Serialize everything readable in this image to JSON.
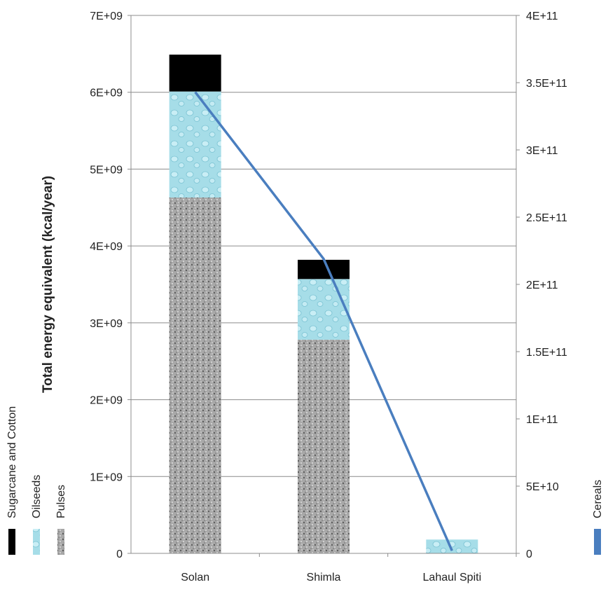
{
  "chart_data": {
    "type": "bar",
    "stacked": true,
    "categories": [
      "Solan",
      "Shimla",
      "Lahaul Spiti"
    ],
    "series": [
      {
        "name": "Pulses",
        "axis": "left",
        "color": "#9a9a9a",
        "values": [
          4630000000.0,
          2780000000.0,
          0.0
        ]
      },
      {
        "name": "Oilseeds",
        "axis": "left",
        "color": "#9fdbe6",
        "values": [
          1380000000.0,
          790000000.0,
          180000000.0
        ]
      },
      {
        "name": "Sugarcane and Cotton",
        "axis": "left",
        "color": "#000000",
        "values": [
          480000000.0,
          250000000.0,
          0.0
        ]
      },
      {
        "name": "Cereals",
        "axis": "right",
        "type": "line",
        "color": "#4a7ebf",
        "values": [
          343000000000.0,
          219000000000.0,
          2000000000.0
        ]
      }
    ],
    "ylabel": "Total energy equivalent (kcal/year)",
    "ylim": [
      0,
      7000000000.0
    ],
    "y_ticks": [
      "0",
      "1E+09",
      "2E+09",
      "3E+09",
      "4E+09",
      "5E+09",
      "6E+09",
      "7E+09"
    ],
    "y2lim": [
      0,
      400000000000.0
    ],
    "y2_ticks": [
      "0",
      "5E+10",
      "1E+11",
      "1.5E+11",
      "2E+11",
      "2.5E+11",
      "3E+11",
      "3.5E+11",
      "4E+11"
    ],
    "grid": true,
    "legend_left": [
      "Sugarcane and Cotton",
      "Oilseeds",
      "Pulses"
    ],
    "legend_right": [
      "Cereals"
    ]
  }
}
